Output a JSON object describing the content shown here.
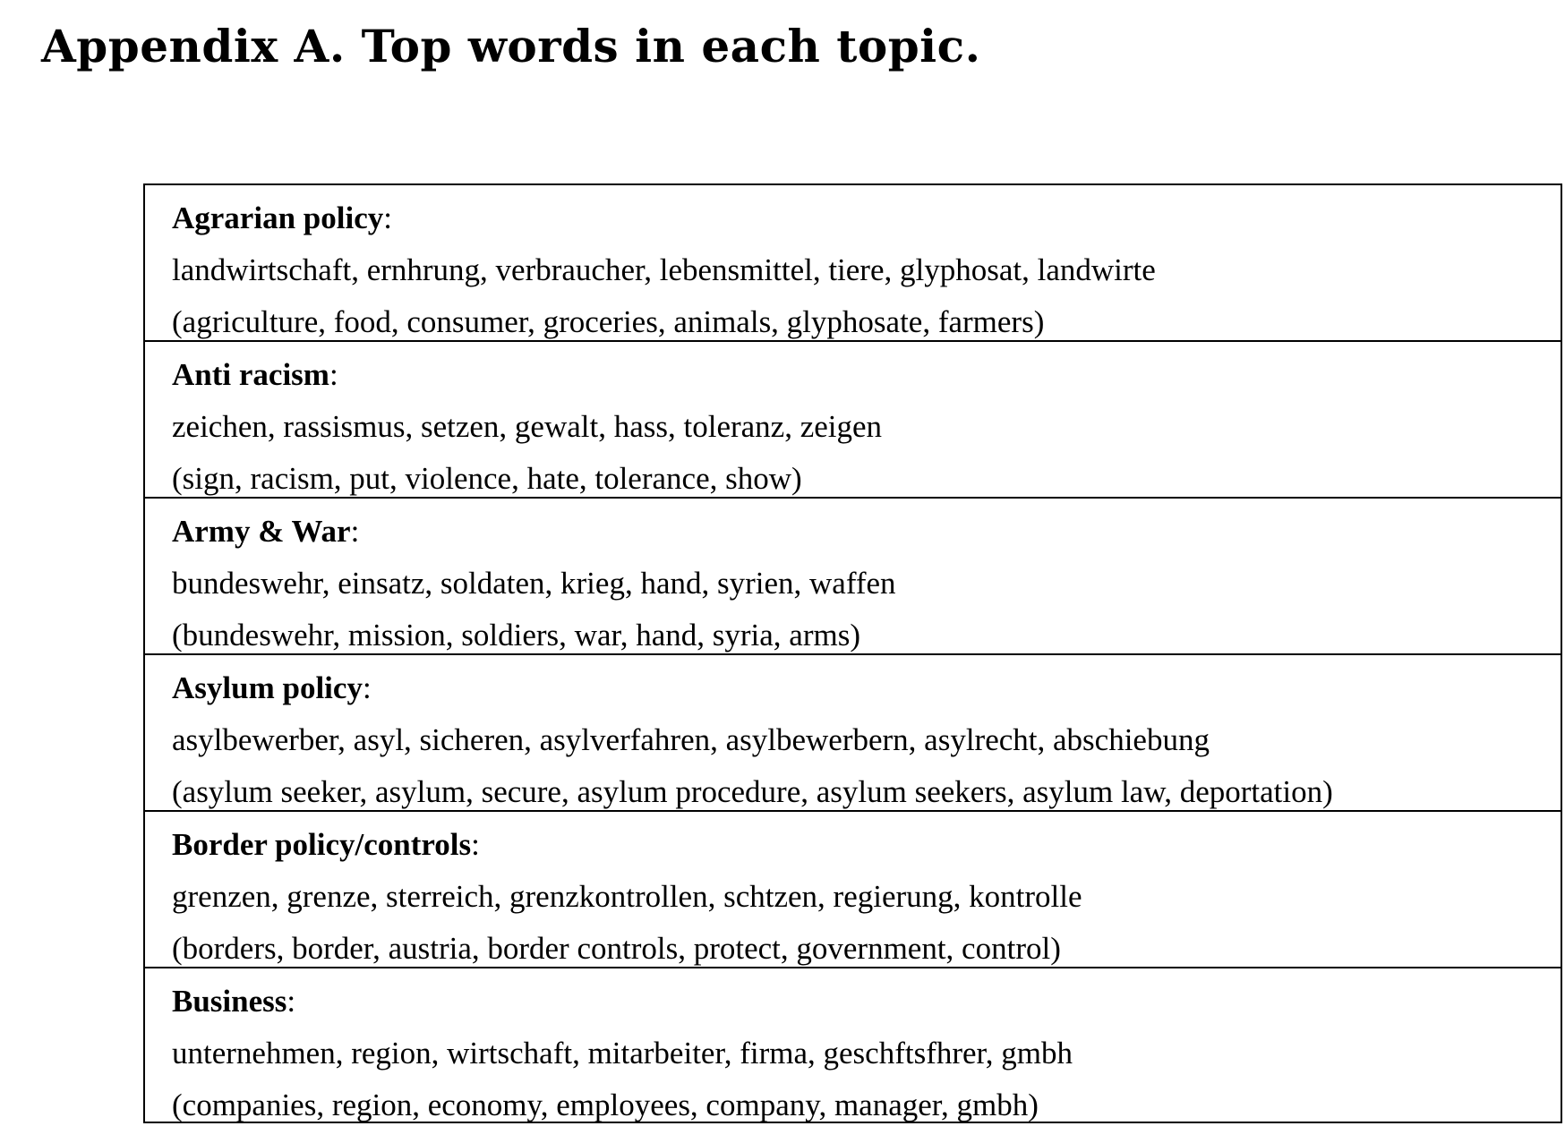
{
  "title": "Appendix A. Top words in each topic.",
  "topics": [
    {
      "name": "Agrarian policy",
      "german": "landwirtschaft, ernhrung, verbraucher, lebensmittel, tiere, glyphosat, landwirte",
      "english": "(agriculture, food, consumer, groceries, animals, glyphosate, farmers)"
    },
    {
      "name": "Anti racism",
      "german": "zeichen, rassismus, setzen, gewalt, hass, toleranz, zeigen",
      "english": "(sign, racism, put, violence, hate, tolerance, show)"
    },
    {
      "name": "Army & War",
      "german": "bundeswehr, einsatz, soldaten, krieg, hand, syrien, waffen",
      "english": "(bundeswehr, mission, soldiers, war, hand, syria, arms)"
    },
    {
      "name": "Asylum policy",
      "german": "asylbewerber, asyl, sicheren, asylverfahren, asylbewerbern, asylrecht, abschiebung",
      "english": "(asylum seeker, asylum, secure, asylum procedure, asylum seekers, asylum law, deportation)"
    },
    {
      "name": "Border policy/controls",
      "german": "grenzen, grenze, sterreich, grenzkontrollen, schtzen, regierung, kontrolle",
      "english": "(borders, border, austria, border controls, protect, government, control)"
    },
    {
      "name": "Business",
      "german": "unternehmen, region, wirtschaft, mitarbeiter, firma, geschftsfhrer, gmbh",
      "english": "(companies, region, economy, employees, company, manager, gmbh)"
    }
  ]
}
